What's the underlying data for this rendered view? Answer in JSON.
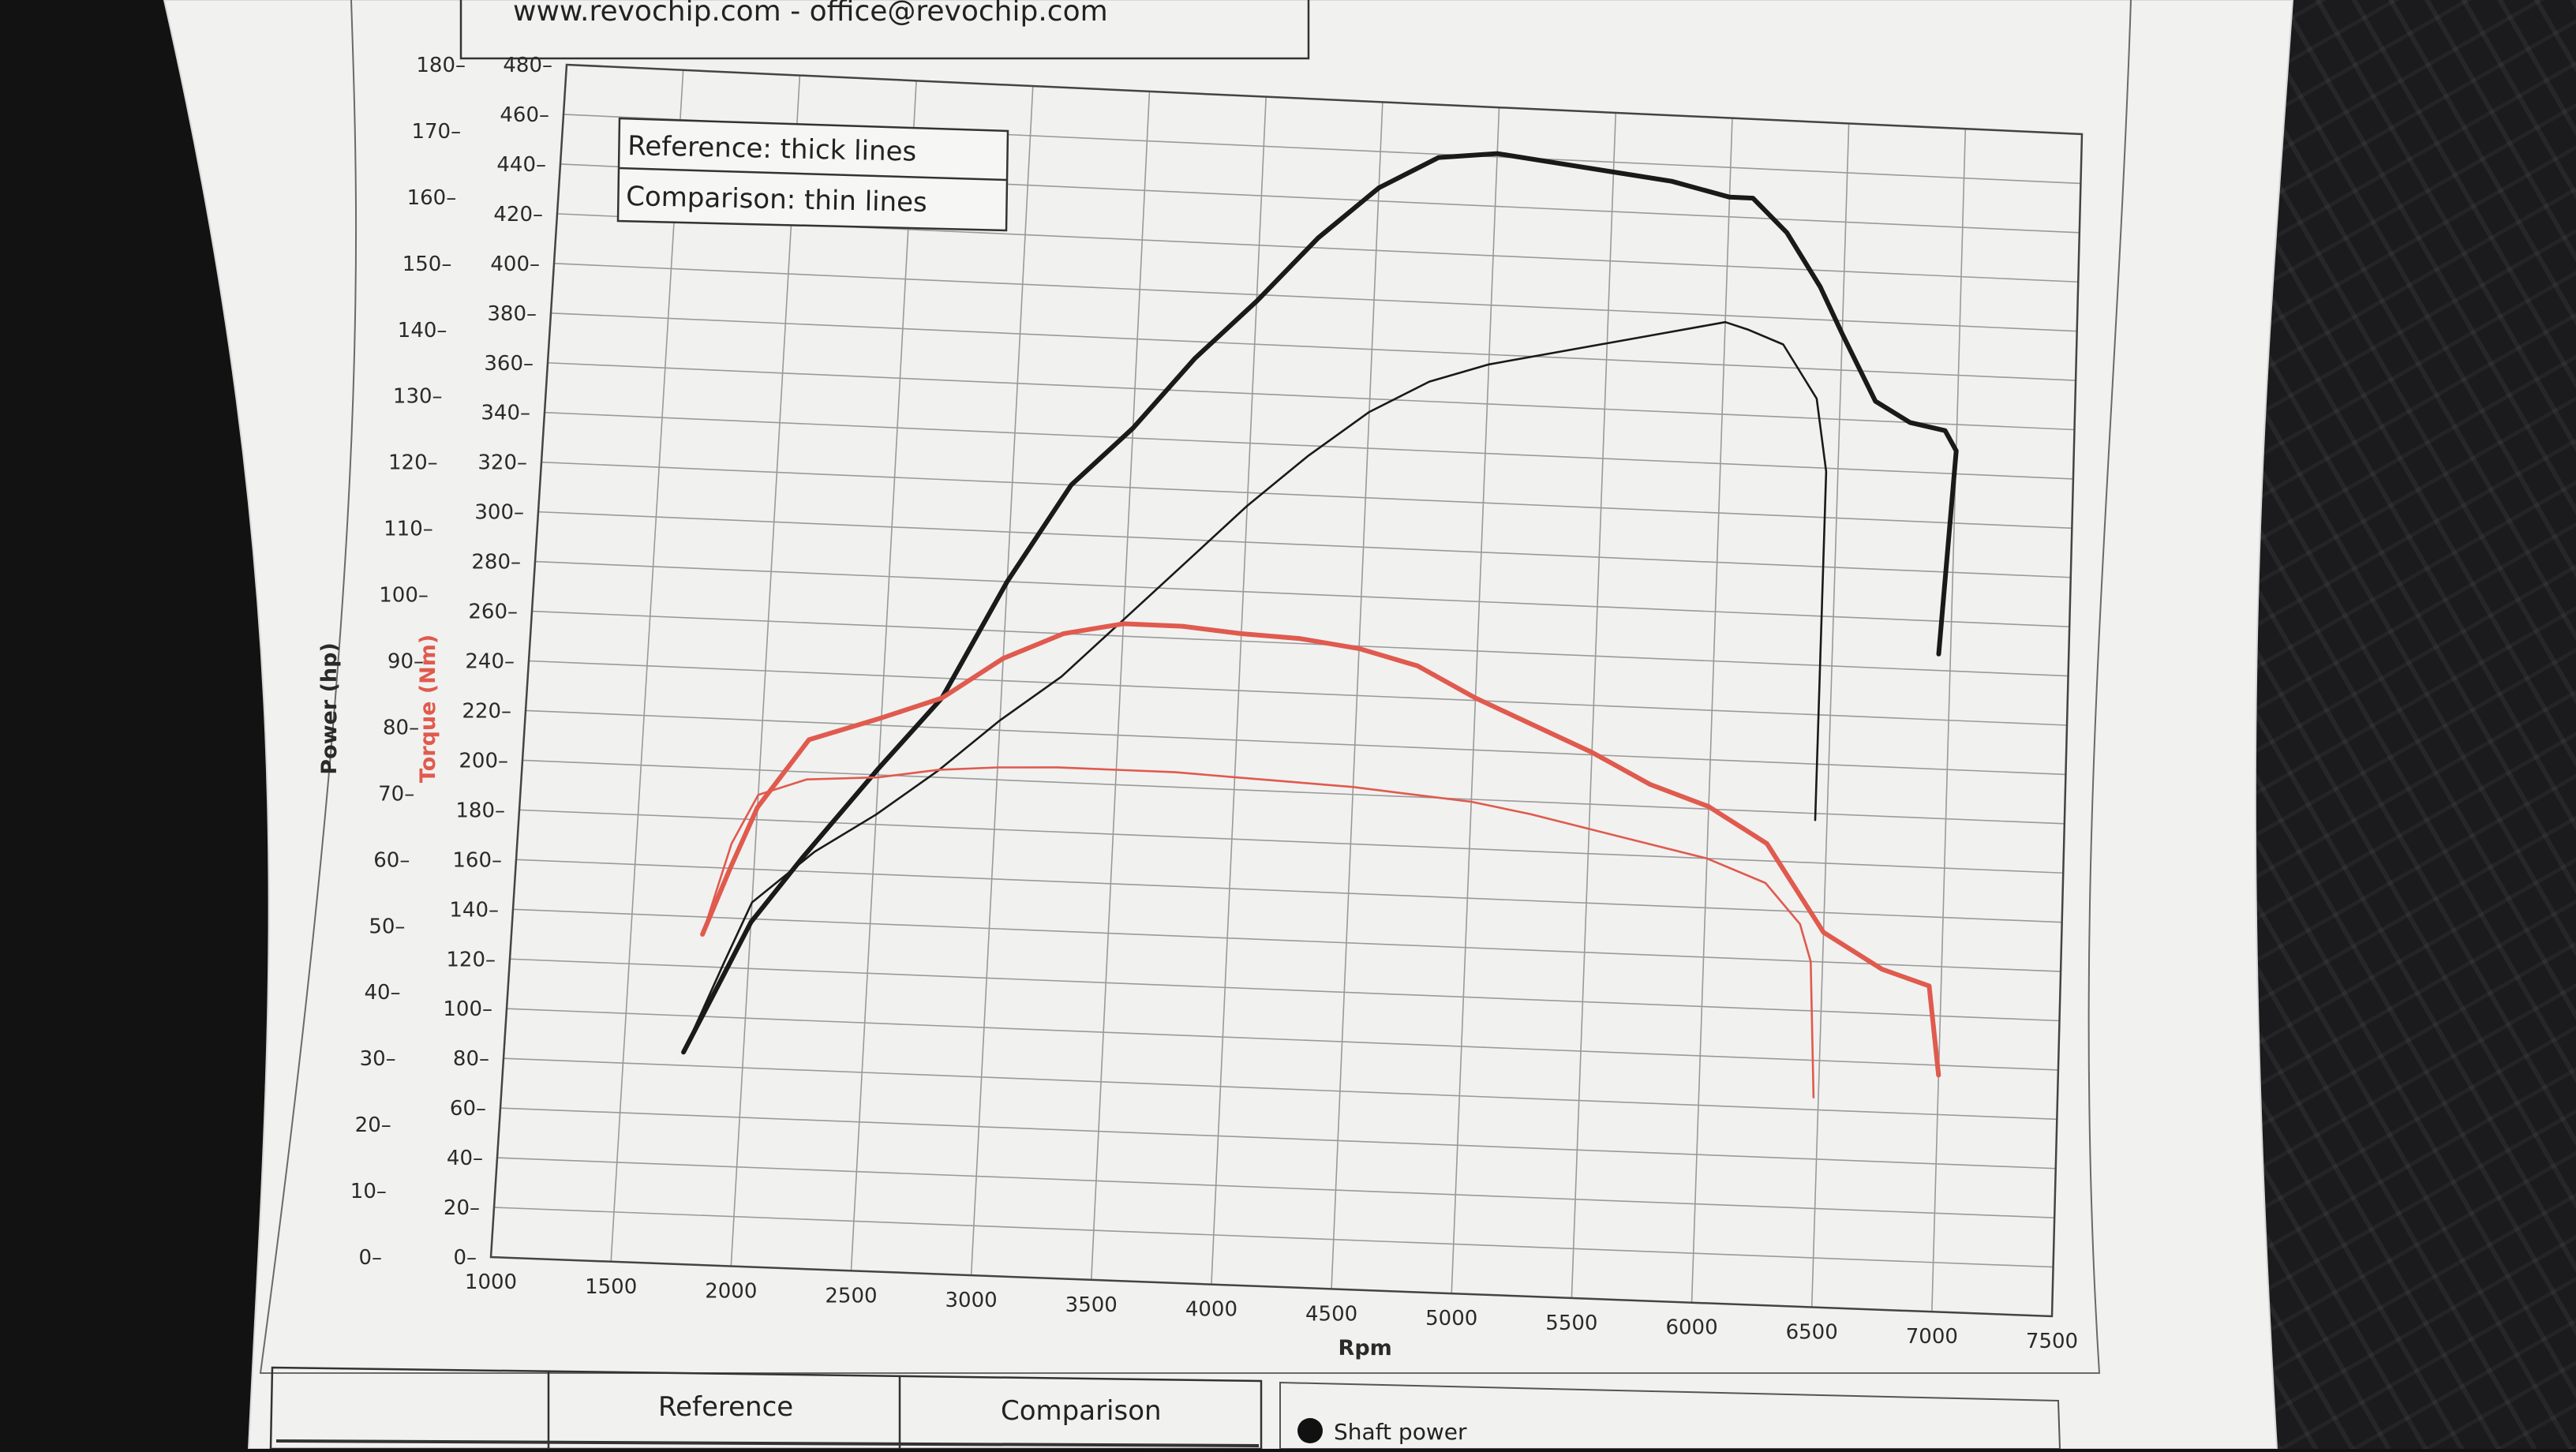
{
  "header": {
    "contact_text": "www.revochip.com - office@revochip.com"
  },
  "legend_box": {
    "reference_label": "Reference: thick lines",
    "comparison_label": "Comparison: thin lines"
  },
  "bottom_table": {
    "col_reference": "Reference",
    "col_comparison": "Comparison"
  },
  "bottom_legend": {
    "shaft_power_label": "Shaft power"
  },
  "colors": {
    "power": "#1a1a1a",
    "torque": "#e05a4e",
    "grid": "#9a9a9a",
    "paper": "#f2f2f2"
  },
  "chart_data": {
    "type": "line",
    "xlabel": "Rpm",
    "ylabel_left": "Power (hp)",
    "ylabel_right": "Torque (Nm)",
    "xlim": [
      1000,
      7500
    ],
    "ylim_power": [
      0,
      180
    ],
    "ylim_torque": [
      0,
      480
    ],
    "x_ticks": [
      1000,
      1500,
      2000,
      2500,
      3000,
      3500,
      4000,
      4500,
      5000,
      5500,
      6000,
      6500,
      7000,
      7500
    ],
    "power_ticks": [
      0,
      10,
      20,
      30,
      40,
      50,
      60,
      70,
      80,
      90,
      100,
      110,
      120,
      130,
      140,
      150,
      160,
      170,
      180
    ],
    "torque_ticks": [
      0,
      20,
      40,
      60,
      80,
      100,
      120,
      140,
      160,
      180,
      200,
      220,
      240,
      260,
      280,
      300,
      320,
      340,
      360,
      380,
      400,
      420,
      440,
      460,
      480
    ],
    "grid": true,
    "series": [
      {
        "name": "Reference: thick lines",
        "quantity": "power",
        "style": "thick",
        "x": [
          1750,
          1900,
          2000,
          2200,
          2500,
          2750,
          3000,
          3250,
          3500,
          3750,
          4000,
          4250,
          4500,
          4750,
          5000,
          5250,
          5500,
          5750,
          6000,
          6100,
          6250,
          6400,
          6500,
          6650,
          6800,
          6950,
          7000,
          6950
        ],
        "y": [
          32,
          44,
          52,
          62,
          76,
          87,
          105,
          120,
          129,
          140,
          149,
          159,
          167,
          172,
          173,
          172,
          171,
          170,
          168,
          168,
          163,
          155,
          148,
          138,
          135,
          134,
          131,
          100
        ]
      },
      {
        "name": "Comparison: thin lines",
        "quantity": "power",
        "style": "thin",
        "x": [
          1750,
          1900,
          2000,
          2250,
          2500,
          2750,
          3000,
          3250,
          3500,
          3750,
          4000,
          4250,
          4500,
          4750,
          5000,
          5250,
          5500,
          5750,
          6000,
          6100,
          6250,
          6400,
          6450,
          6450
        ],
        "y": [
          32,
          46,
          55,
          63,
          69,
          76,
          84,
          91,
          100,
          109,
          118,
          126,
          133,
          138,
          141,
          143,
          145,
          147,
          149,
          148,
          146,
          138,
          127,
          74
        ]
      },
      {
        "name": "Reference: thick lines",
        "quantity": "torque",
        "style": "thick",
        "x": [
          1800,
          1900,
          2000,
          2200,
          2500,
          2750,
          3000,
          3250,
          3500,
          3750,
          4000,
          4250,
          4500,
          4750,
          5000,
          5250,
          5500,
          5750,
          6000,
          6250,
          6500,
          6750,
          6950,
          7000
        ],
        "y": [
          133,
          160,
          185,
          213,
          223,
          232,
          249,
          260,
          265,
          265,
          263,
          262,
          259,
          253,
          241,
          231,
          221,
          209,
          201,
          187,
          152,
          138,
          132,
          96
        ]
      },
      {
        "name": "Comparison: thin lines",
        "quantity": "torque",
        "style": "thin",
        "x": [
          1800,
          1900,
          2000,
          2200,
          2500,
          2750,
          3000,
          3250,
          3500,
          3750,
          4000,
          4250,
          4500,
          4750,
          5000,
          5250,
          5500,
          5750,
          6000,
          6250,
          6400,
          6450,
          6480
        ],
        "y": [
          133,
          170,
          190,
          197,
          199,
          203,
          205,
          206,
          206,
          206,
          205,
          204,
          203,
          201,
          199,
          195,
          190,
          185,
          180,
          171,
          155,
          140,
          85
        ]
      }
    ]
  }
}
